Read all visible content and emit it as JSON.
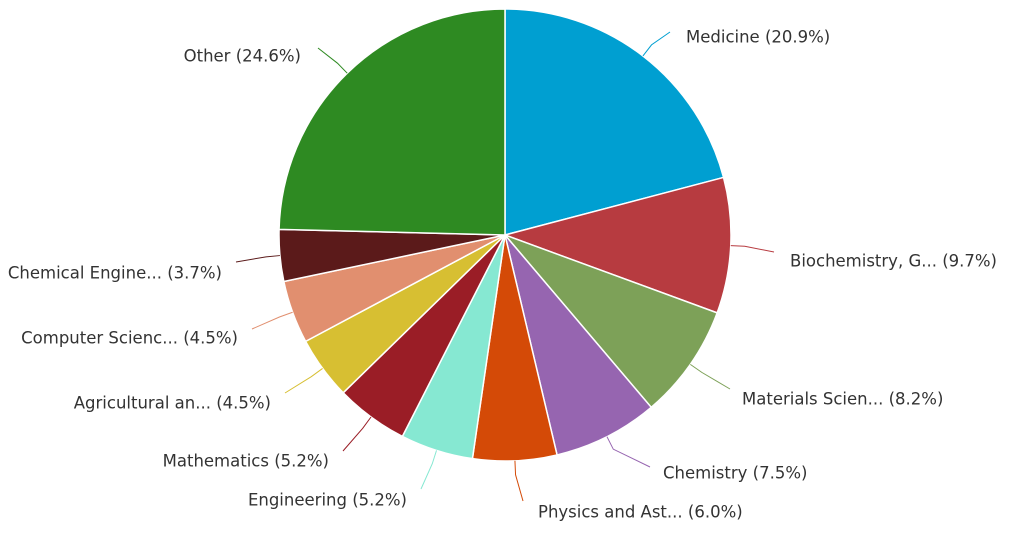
{
  "chart_data": {
    "type": "pie",
    "title": "",
    "legend": "none",
    "slices": [
      {
        "label": "Medicine",
        "percent": 20.9,
        "display": "Medicine (20.9%)",
        "color": "#009fd1"
      },
      {
        "label": "Biochemistry, G...",
        "percent": 9.7,
        "display": "Biochemistry, G... (9.7%)",
        "color": "#b73b40"
      },
      {
        "label": "Materials Scien...",
        "percent": 8.2,
        "display": "Materials Scien... (8.2%)",
        "color": "#7da158"
      },
      {
        "label": "Chemistry",
        "percent": 7.5,
        "display": "Chemistry (7.5%)",
        "color": "#9665b0"
      },
      {
        "label": "Physics and Ast...",
        "percent": 6.0,
        "display": "Physics and Ast... (6.0%)",
        "color": "#d44a07"
      },
      {
        "label": "Engineering",
        "percent": 5.2,
        "display": "Engineering (5.2%)",
        "color": "#86e8d2"
      },
      {
        "label": "Mathematics",
        "percent": 5.2,
        "display": "Mathematics (5.2%)",
        "color": "#9a1d26"
      },
      {
        "label": "Agricultural an...",
        "percent": 4.5,
        "display": "Agricultural an... (4.5%)",
        "color": "#d7bf32"
      },
      {
        "label": "Computer Scienc...",
        "percent": 4.5,
        "display": "Computer Scienc... (4.5%)",
        "color": "#e18f6f"
      },
      {
        "label": "Chemical Engine...",
        "percent": 3.7,
        "display": "Chemical Engine... (3.7%)",
        "color": "#5b1a1a"
      },
      {
        "label": "Other",
        "percent": 24.6,
        "display": "Other (24.6%)",
        "color": "#2e8a22"
      }
    ]
  }
}
